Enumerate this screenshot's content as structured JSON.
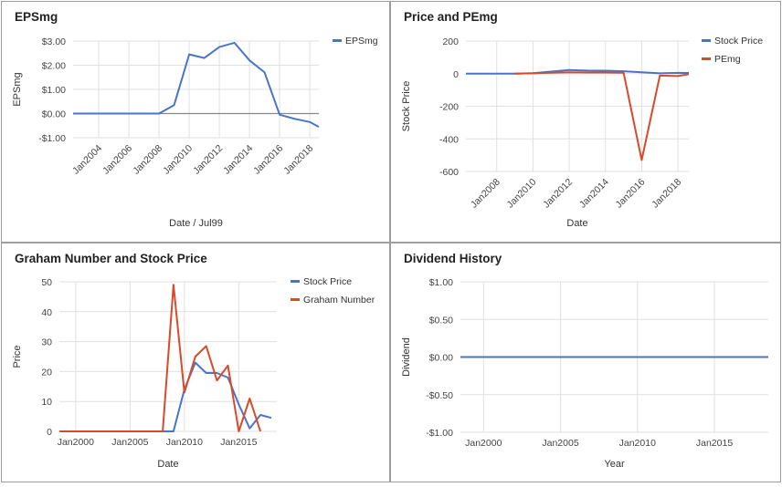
{
  "chart_data": [
    {
      "id": "p1",
      "type": "line",
      "title": "EPSmg",
      "xlabel": "Date / Jul99",
      "ylabel": "EPSmg",
      "x_axis": {
        "kind": "date",
        "min": 2002.3,
        "max": 2018.6
      },
      "y_axis": {
        "min": -1.0,
        "max": 3.0,
        "ticks": [
          3,
          2,
          1,
          0,
          -1
        ],
        "tick_labels": [
          "$3.00",
          "$2.00",
          "$1.00",
          "$0.00",
          "-$1.00"
        ]
      },
      "x_ticks": [
        2004,
        2006,
        2008,
        2010,
        2012,
        2014,
        2016,
        2018
      ],
      "x_tick_labels": [
        "Jan2004",
        "Jan2006",
        "Jan2008",
        "Jan2010",
        "Jan2012",
        "Jan2014",
        "Jan2016",
        "Jan2018"
      ],
      "baseline": 0,
      "grid": true,
      "legend": "right",
      "series": [
        {
          "name": "EPSmg",
          "color": "#4a74c9",
          "x": [
            2002.3,
            2008.0,
            2009.0,
            2010.0,
            2011.0,
            2012.0,
            2013.0,
            2014.0,
            2015.0,
            2016.0,
            2017.0,
            2018.0,
            2018.6
          ],
          "y": [
            0.0,
            0.0,
            0.35,
            2.45,
            2.3,
            2.75,
            2.93,
            2.2,
            1.7,
            -0.05,
            -0.22,
            -0.35,
            -0.55
          ]
        }
      ]
    },
    {
      "id": "p2",
      "type": "line",
      "title": "Price and PEmg",
      "xlabel": "Date",
      "ylabel": "Stock Price",
      "x_axis": {
        "kind": "date",
        "min": 2006.3,
        "max": 2018.6
      },
      "y_axis": {
        "min": -600,
        "max": 200,
        "ticks": [
          200,
          0,
          -200,
          -400,
          -600
        ],
        "tick_labels": [
          "200",
          "0",
          "-200",
          "-400",
          "-600"
        ]
      },
      "x_ticks": [
        2008,
        2010,
        2012,
        2014,
        2016,
        2018
      ],
      "x_tick_labels": [
        "Jan2008",
        "Jan2010",
        "Jan2012",
        "Jan2014",
        "Jan2016",
        "Jan2018"
      ],
      "grid": true,
      "legend": "right",
      "series": [
        {
          "name": "Stock Price",
          "color": "#4a74c9",
          "x": [
            2006.3,
            2009.0,
            2010.0,
            2012.0,
            2013.0,
            2014.0,
            2015.0,
            2016.0,
            2017.0,
            2018.0,
            2018.6
          ],
          "y": [
            0,
            0,
            3,
            22,
            19,
            18,
            15,
            8,
            2,
            5,
            4
          ]
        },
        {
          "name": "PEmg",
          "color": "#d84a2b",
          "x": [
            2009.0,
            2010.0,
            2011.0,
            2012.0,
            2013.0,
            2014.0,
            2015.0,
            2016.0,
            2017.0,
            2018.0,
            2018.6
          ],
          "y": [
            0,
            2,
            6,
            8,
            7,
            7,
            6,
            -530,
            -12,
            -15,
            -3
          ]
        }
      ]
    },
    {
      "id": "p3",
      "type": "line",
      "title": "Graham Number and Stock Price",
      "xlabel": "Date",
      "ylabel": "Price",
      "x_axis": {
        "kind": "date",
        "min": 1998.5,
        "max": 2018.5
      },
      "y_axis": {
        "min": 0,
        "max": 50,
        "ticks": [
          50,
          40,
          30,
          20,
          10,
          0
        ],
        "tick_labels": [
          "50",
          "40",
          "30",
          "20",
          "10",
          "0"
        ]
      },
      "x_ticks": [
        2000,
        2005,
        2010,
        2015
      ],
      "x_tick_labels": [
        "Jan2000",
        "Jan2005",
        "Jan2010",
        "Jan2015"
      ],
      "grid": true,
      "legend": "right",
      "series": [
        {
          "name": "Stock Price",
          "color": "#4a74c9",
          "x": [
            1998.5,
            2009.0,
            2010.0,
            2011.0,
            2012.0,
            2013.0,
            2014.0,
            2015.0,
            2016.0,
            2017.0,
            2018.0
          ],
          "y": [
            0,
            0,
            14,
            23,
            19.5,
            19.5,
            18,
            9,
            1,
            5.5,
            4.5
          ]
        },
        {
          "name": "Graham Number",
          "color": "#d84a2b",
          "x": [
            1998.5,
            2008.0,
            2009.0,
            2010.0,
            2011.0,
            2012.0,
            2013.0,
            2014.0,
            2015.0,
            2016.0,
            2017.0
          ],
          "y": [
            0,
            0,
            49,
            13,
            25,
            28.5,
            17,
            22,
            0,
            11,
            0
          ]
        }
      ]
    },
    {
      "id": "p4",
      "type": "line",
      "title": "Dividend History",
      "xlabel": "Year",
      "ylabel": "Dividend",
      "x_axis": {
        "kind": "date",
        "min": 1998.5,
        "max": 2018.5
      },
      "y_axis": {
        "min": -1.0,
        "max": 1.0,
        "ticks": [
          1,
          0.5,
          0,
          -0.5,
          -1
        ],
        "tick_labels": [
          "$1.00",
          "$0.50",
          "$0.00",
          "-$0.50",
          "-$1.00"
        ]
      },
      "x_ticks": [
        2000,
        2005,
        2010,
        2015
      ],
      "x_tick_labels": [
        "Jan2000",
        "Jan2005",
        "Jan2010",
        "Jan2015"
      ],
      "grid": true,
      "legend": "none",
      "series": [
        {
          "name": "Dividend",
          "color": "#4a74c9",
          "x": [
            1998.5,
            2018.5
          ],
          "y": [
            0,
            0
          ]
        }
      ]
    }
  ]
}
